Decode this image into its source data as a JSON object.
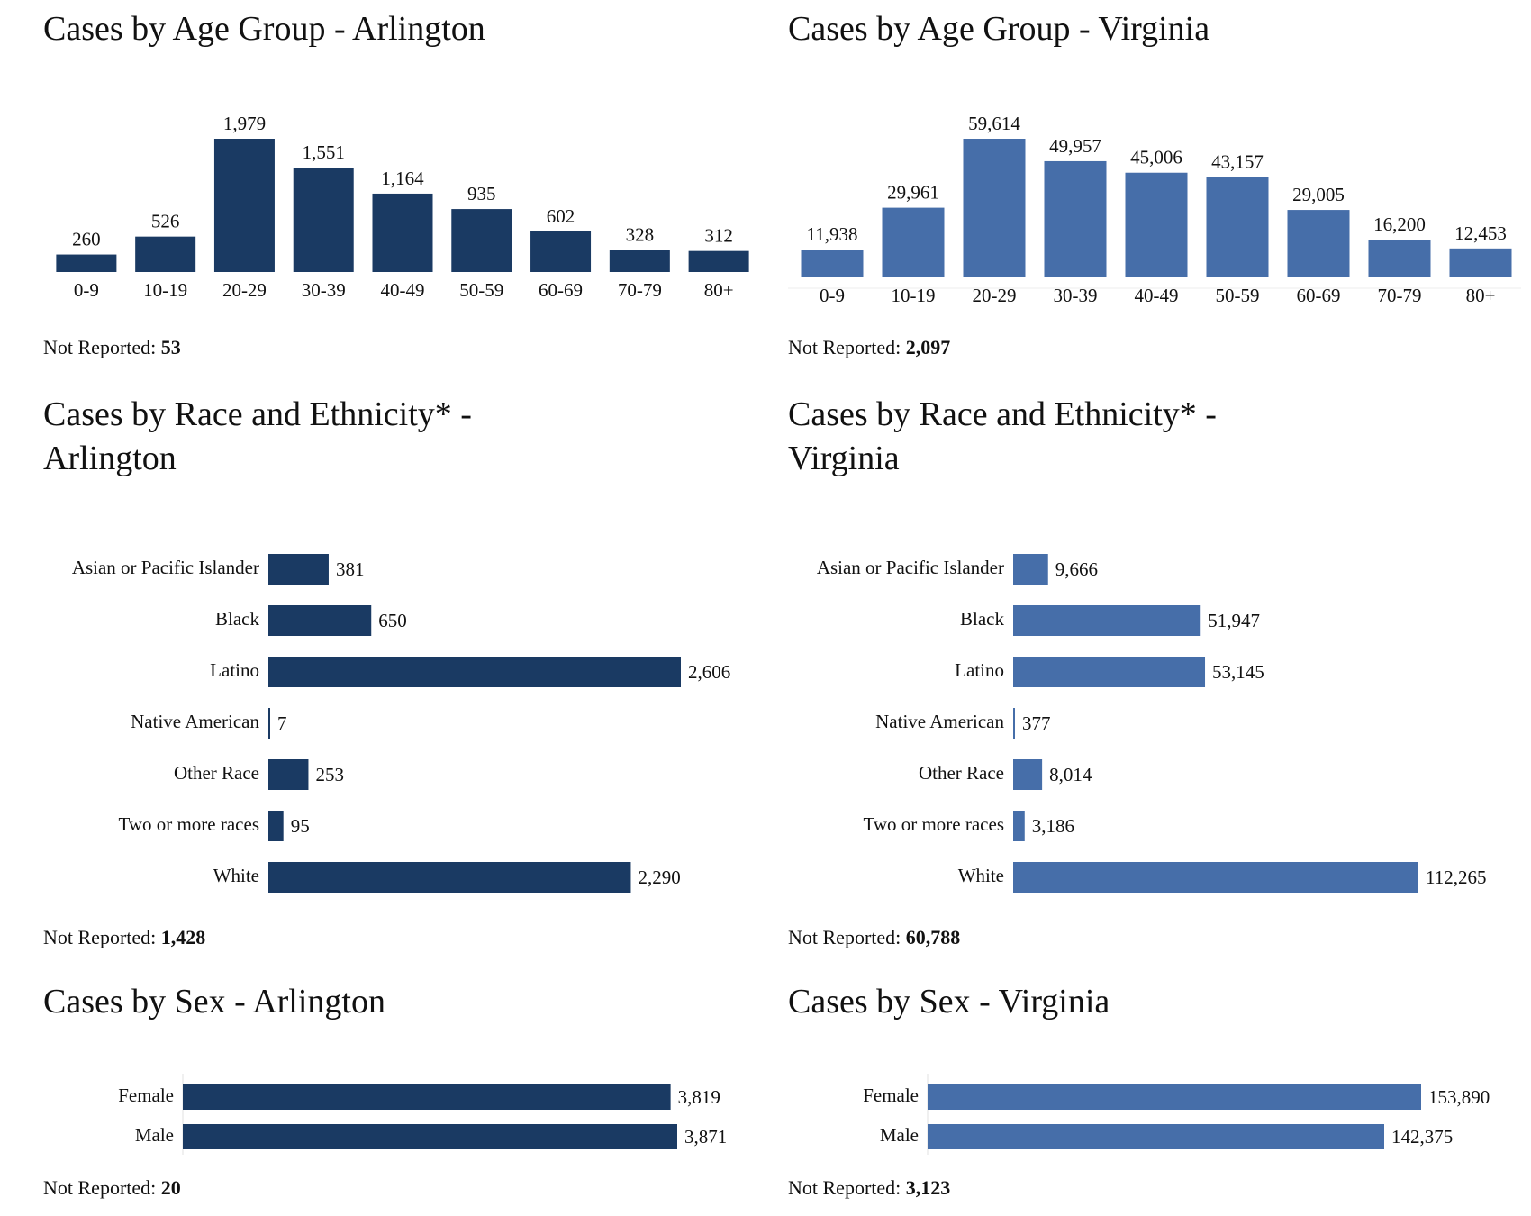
{
  "colors": {
    "arlington": "#1a3a63",
    "virginia": "#466ea9"
  },
  "panels": [
    {
      "title": "Cases by Age Group - Arlington",
      "not_reported_label": "Not Reported:",
      "not_reported_value": "53",
      "chart_data": {
        "type": "bar",
        "orientation": "vertical",
        "color": "#1a3a63",
        "categories": [
          "0-9",
          "10-19",
          "20-29",
          "30-39",
          "40-49",
          "50-59",
          "60-69",
          "70-79",
          "80+"
        ],
        "values": [
          260,
          526,
          1979,
          1551,
          1164,
          935,
          602,
          328,
          312
        ],
        "labels": [
          "260",
          "526",
          "1,979",
          "1,551",
          "1,164",
          "935",
          "602",
          "328",
          "312"
        ]
      }
    },
    {
      "title": "Cases by Age Group - Virginia",
      "not_reported_label": "Not Reported:",
      "not_reported_value": "2,097",
      "chart_data": {
        "type": "bar",
        "orientation": "vertical",
        "color": "#466ea9",
        "categories": [
          "0-9",
          "10-19",
          "20-29",
          "30-39",
          "40-49",
          "50-59",
          "60-69",
          "70-79",
          "80+"
        ],
        "values": [
          11938,
          29961,
          59614,
          49957,
          45006,
          43157,
          29005,
          16200,
          12453
        ],
        "labels": [
          "11,938",
          "29,961",
          "59,614",
          "49,957",
          "45,006",
          "43,157",
          "29,005",
          "16,200",
          "12,453"
        ]
      }
    },
    {
      "title": "Cases by Race and Ethnicity* - Arlington",
      "not_reported_label": "Not Reported:",
      "not_reported_value": "1,428",
      "chart_data": {
        "type": "bar",
        "orientation": "horizontal",
        "color": "#1a3a63",
        "categories": [
          "Asian or Pacific Islander",
          "Black",
          "Latino",
          "Native American",
          "Other Race",
          "Two or more races",
          "White"
        ],
        "values": [
          381,
          650,
          2606,
          7,
          253,
          95,
          2290
        ],
        "labels": [
          "381",
          "650",
          "2,606",
          "7",
          "253",
          "95",
          "2,290"
        ]
      }
    },
    {
      "title": "Cases by Race and Ethnicity* - Virginia",
      "not_reported_label": "Not Reported:",
      "not_reported_value": "60,788",
      "chart_data": {
        "type": "bar",
        "orientation": "horizontal",
        "color": "#466ea9",
        "categories": [
          "Asian or Pacific Islander",
          "Black",
          "Latino",
          "Native American",
          "Other Race",
          "Two or more races",
          "White"
        ],
        "values": [
          9666,
          51947,
          53145,
          377,
          8014,
          3186,
          112265
        ],
        "labels": [
          "9,666",
          "51,947",
          "53,145",
          "377",
          "8,014",
          "3,186",
          "112,265"
        ]
      }
    },
    {
      "title": "Cases by Sex - Arlington",
      "not_reported_label": "Not Reported:",
      "not_reported_value": "20",
      "chart_data": {
        "type": "bar",
        "orientation": "horizontal",
        "color": "#1a3a63",
        "categories": [
          "Female",
          "Male"
        ],
        "values": [
          3819,
          3871
        ],
        "labels": [
          "3,819",
          "3,871"
        ]
      }
    },
    {
      "title": "Cases by Sex - Virginia",
      "not_reported_label": "Not Reported:",
      "not_reported_value": "3,123",
      "chart_data": {
        "type": "bar",
        "orientation": "horizontal",
        "color": "#466ea9",
        "categories": [
          "Female",
          "Male"
        ],
        "values": [
          153890,
          142375
        ],
        "labels": [
          "153,890",
          "142,375"
        ]
      }
    }
  ]
}
